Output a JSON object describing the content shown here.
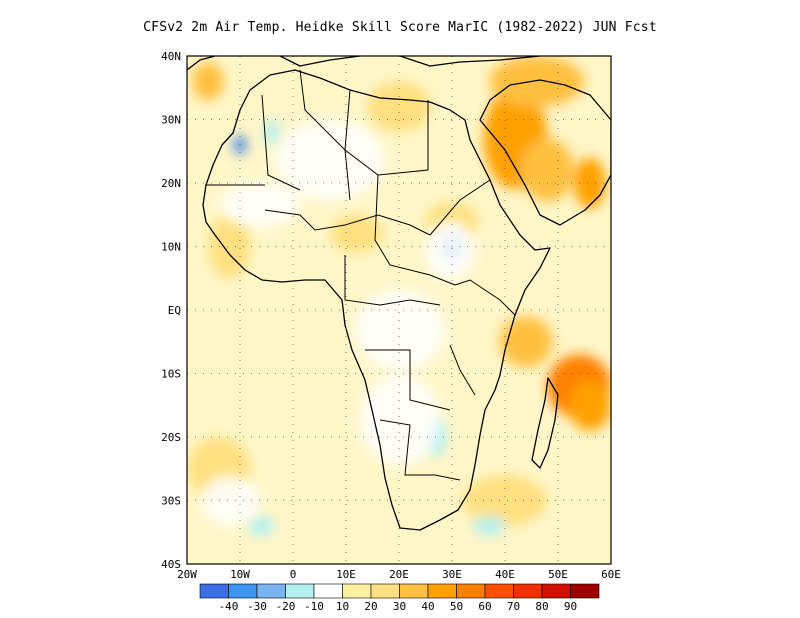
{
  "title": "CFSv2  2m Air Temp. Heidke Skill Score MarIC (1982-2022) JUN Fcst",
  "map": {
    "lon_range": [
      -20,
      60
    ],
    "lat_range": [
      -40,
      40
    ],
    "grid": "dotted",
    "lat_labels": [
      {
        "lat": 40,
        "text": "40N"
      },
      {
        "lat": 30,
        "text": "30N"
      },
      {
        "lat": 20,
        "text": "20N"
      },
      {
        "lat": 10,
        "text": "10N"
      },
      {
        "lat": 0,
        "text": "EQ"
      },
      {
        "lat": -10,
        "text": "10S"
      },
      {
        "lat": -20,
        "text": "20S"
      },
      {
        "lat": -30,
        "text": "30S"
      },
      {
        "lat": -40,
        "text": "40S"
      }
    ],
    "lon_labels": [
      {
        "lon": -20,
        "text": "20W"
      },
      {
        "lon": -10,
        "text": "10W"
      },
      {
        "lon": 0,
        "text": "0"
      },
      {
        "lon": 10,
        "text": "10E"
      },
      {
        "lon": 20,
        "text": "20E"
      },
      {
        "lon": 30,
        "text": "30E"
      },
      {
        "lon": 40,
        "text": "40E"
      },
      {
        "lon": 50,
        "text": "50E"
      },
      {
        "lon": 60,
        "text": "60E"
      }
    ],
    "skill_regions": [
      {
        "lon": -16,
        "lat": 36,
        "rx": 3,
        "ry": 3,
        "color": "#ffc040"
      },
      {
        "lon": 42,
        "lat": 27,
        "rx": 6,
        "ry": 8,
        "color": "#ffa000"
      },
      {
        "lon": 48,
        "lat": 22,
        "rx": 5,
        "ry": 5,
        "color": "#ffc040"
      },
      {
        "lon": 56,
        "lat": 20,
        "rx": 3,
        "ry": 4,
        "color": "#ffa000"
      },
      {
        "lon": 46,
        "lat": 36,
        "rx": 9,
        "ry": 4,
        "color": "#ffc040"
      },
      {
        "lon": 54,
        "lat": -12,
        "rx": 6,
        "ry": 5,
        "color": "#ff8000"
      },
      {
        "lon": 56,
        "lat": -15,
        "rx": 4,
        "ry": 4,
        "color": "#ffa000"
      },
      {
        "lon": 44,
        "lat": -5,
        "rx": 5,
        "ry": 4,
        "color": "#ffc040"
      },
      {
        "lon": 12,
        "lat": 12,
        "rx": 5,
        "ry": 3,
        "color": "#ffe080"
      },
      {
        "lon": 30,
        "lat": 14,
        "rx": 5,
        "ry": 3,
        "color": "#ffe080"
      },
      {
        "lon": -12,
        "lat": 10,
        "rx": 4,
        "ry": 5,
        "color": "#ffe080"
      },
      {
        "lon": 20,
        "lat": 32,
        "rx": 6,
        "ry": 4,
        "color": "#ffe080"
      },
      {
        "lon": -14,
        "lat": -25,
        "rx": 6,
        "ry": 5,
        "color": "#ffe080"
      },
      {
        "lon": 40,
        "lat": -30,
        "rx": 8,
        "ry": 4,
        "color": "#ffe080"
      },
      {
        "lon": 30,
        "lat": 10,
        "rx": 2,
        "ry": 2.5,
        "color": "#78b4f0"
      },
      {
        "lon": 30,
        "lat": 10,
        "rx": 1.2,
        "ry": 1.5,
        "color": "#4090e8"
      },
      {
        "lon": -10,
        "lat": 26,
        "rx": 1.2,
        "ry": 1.5,
        "color": "#3c82e8"
      },
      {
        "lon": -4,
        "lat": 28,
        "rx": 1.5,
        "ry": 2,
        "color": "#b4f0f0"
      },
      {
        "lon": 27,
        "lat": -20,
        "rx": 2,
        "ry": 3,
        "color": "#b4f0f0"
      },
      {
        "lon": -6,
        "lat": -34,
        "rx": 2.5,
        "ry": 1.5,
        "color": "#b4f0f0"
      },
      {
        "lon": 37,
        "lat": -34,
        "rx": 3,
        "ry": 1.5,
        "color": "#b4f0f0"
      }
    ]
  },
  "colorbar": {
    "colors": [
      "#3c6ee8",
      "#3c96f0",
      "#78b4f0",
      "#b4f0f0",
      "#ffffff",
      "#fff0a0",
      "#ffe080",
      "#ffc040",
      "#ffa000",
      "#ff8000",
      "#ff5000",
      "#f03000",
      "#d01000",
      "#a00000"
    ],
    "labels": [
      "-40",
      "-30",
      "-20",
      "-10",
      "10",
      "20",
      "30",
      "40",
      "50",
      "60",
      "70",
      "80",
      "90"
    ]
  }
}
